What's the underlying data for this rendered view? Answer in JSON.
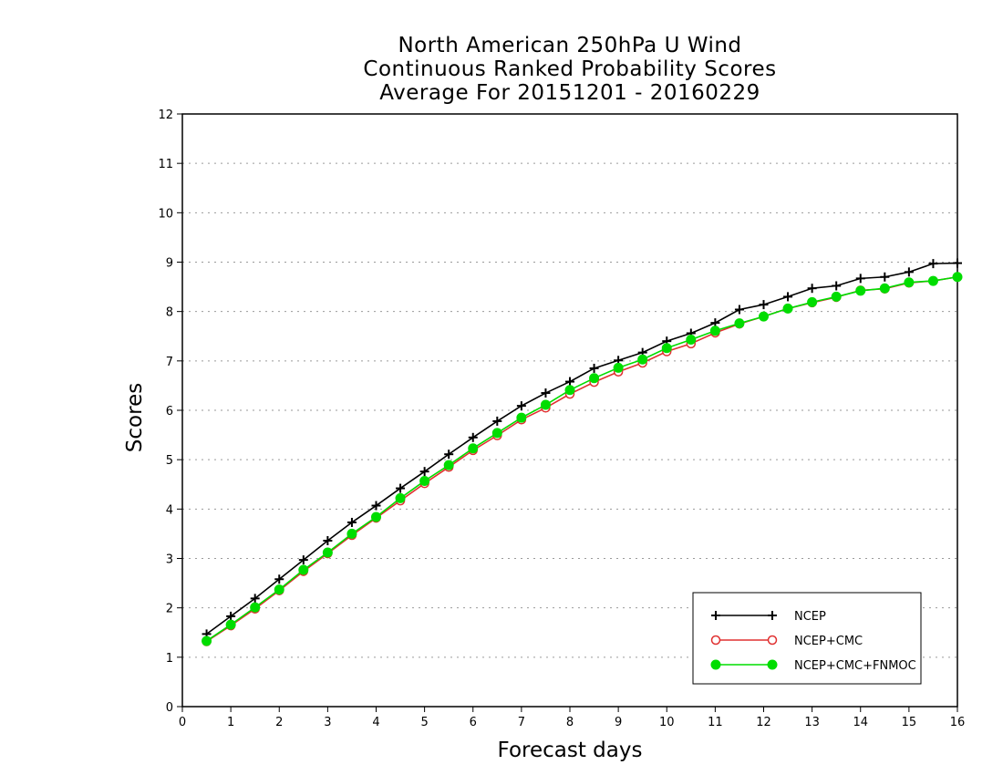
{
  "chart_data": {
    "type": "line",
    "title": [
      "North American 250hPa U Wind",
      "Continuous Ranked Probability Scores",
      "Average For 20151201 - 20160229"
    ],
    "xlabel": "Forecast days",
    "ylabel": "Scores",
    "xlim": [
      0,
      16
    ],
    "ylim": [
      0,
      12
    ],
    "xticks": [
      "0",
      "1",
      "2",
      "3",
      "4",
      "5",
      "6",
      "7",
      "8",
      "9",
      "10",
      "11",
      "12",
      "13",
      "14",
      "15",
      "16"
    ],
    "yticks": [
      "0",
      "1",
      "2",
      "3",
      "4",
      "5",
      "6",
      "7",
      "8",
      "9",
      "10",
      "11",
      "12"
    ],
    "grid": "horizontal dotted",
    "legend_position": "bottom-right",
    "x": [
      0.5,
      1,
      1.5,
      2,
      2.5,
      3,
      3.5,
      4,
      4.5,
      5,
      5.5,
      6,
      6.5,
      7,
      7.5,
      8,
      8.5,
      9,
      9.5,
      10,
      10.5,
      11,
      11.5,
      12,
      12.5,
      13,
      13.5,
      14,
      14.5,
      15,
      15.5,
      16
    ],
    "series": [
      {
        "name": "NCEP",
        "color": "#000000",
        "marker": "plus",
        "values": [
          1.47,
          1.83,
          2.19,
          2.58,
          2.97,
          3.36,
          3.73,
          4.07,
          4.42,
          4.76,
          5.11,
          5.45,
          5.78,
          6.09,
          6.35,
          6.58,
          6.85,
          7.01,
          7.17,
          7.4,
          7.56,
          7.77,
          8.04,
          8.14,
          8.3,
          8.47,
          8.52,
          8.67,
          8.7,
          8.8,
          8.97,
          8.98
        ]
      },
      {
        "name": "NCEP+CMC",
        "color": "#e03030",
        "marker": "open-circle",
        "values": [
          1.32,
          1.64,
          1.98,
          2.35,
          2.74,
          3.1,
          3.47,
          3.82,
          4.17,
          4.52,
          4.85,
          5.19,
          5.49,
          5.81,
          6.05,
          6.33,
          6.57,
          6.78,
          6.96,
          7.19,
          7.35,
          7.57,
          7.75,
          7.9,
          8.06,
          8.18,
          8.29,
          8.43,
          8.46,
          8.58,
          8.62,
          8.7
        ]
      },
      {
        "name": "NCEP+CMC+FNMOC",
        "color": "#00dd00",
        "marker": "filled-circle",
        "values": [
          1.33,
          1.66,
          2.01,
          2.37,
          2.77,
          3.12,
          3.5,
          3.84,
          4.22,
          4.57,
          4.89,
          5.23,
          5.54,
          5.85,
          6.11,
          6.41,
          6.65,
          6.86,
          7.03,
          7.26,
          7.43,
          7.61,
          7.76,
          7.9,
          8.06,
          8.19,
          8.3,
          8.42,
          8.47,
          8.59,
          8.62,
          8.7
        ]
      }
    ]
  }
}
